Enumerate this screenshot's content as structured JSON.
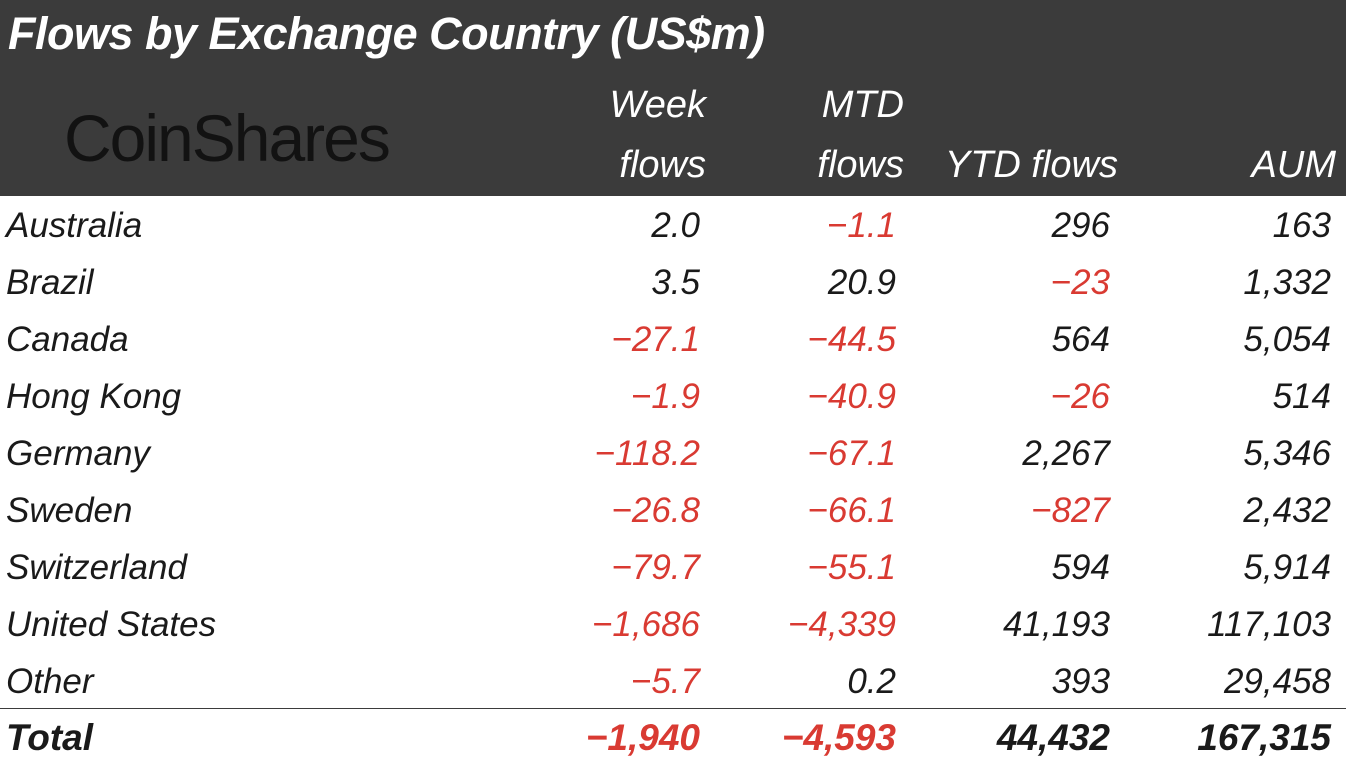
{
  "chart_data": {
    "type": "table",
    "title": "Flows by Exchange Country (US$m)",
    "brand": "CoinShares",
    "columns": [
      {
        "line1": "Week",
        "line2": "flows"
      },
      {
        "line1": "MTD",
        "line2": "flows"
      },
      {
        "line1": "",
        "line2": "YTD flows"
      },
      {
        "line1": "",
        "line2": "AUM"
      }
    ],
    "rows": [
      {
        "country": "Australia",
        "week": "2.0",
        "mtd": "-1.1",
        "ytd": "296",
        "aum": "163"
      },
      {
        "country": "Brazil",
        "week": "3.5",
        "mtd": "20.9",
        "ytd": "-23",
        "aum": "1,332"
      },
      {
        "country": "Canada",
        "week": "-27.1",
        "mtd": "-44.5",
        "ytd": "564",
        "aum": "5,054"
      },
      {
        "country": "Hong Kong",
        "week": "-1.9",
        "mtd": "-40.9",
        "ytd": "-26",
        "aum": "514"
      },
      {
        "country": "Germany",
        "week": "-118.2",
        "mtd": "-67.1",
        "ytd": "2,267",
        "aum": "5,346"
      },
      {
        "country": "Sweden",
        "week": "-26.8",
        "mtd": "-66.1",
        "ytd": "-827",
        "aum": "2,432"
      },
      {
        "country": "Switzerland",
        "week": "-79.7",
        "mtd": "-55.1",
        "ytd": "594",
        "aum": "5,914"
      },
      {
        "country": "United States",
        "week": "-1,686",
        "mtd": "-4,339",
        "ytd": "41,193",
        "aum": "117,103"
      },
      {
        "country": "Other",
        "week": "-5.7",
        "mtd": "0.2",
        "ytd": "393",
        "aum": "29,458"
      }
    ],
    "total": {
      "label": "Total",
      "week": "-1,940",
      "mtd": "-4,593",
      "ytd": "44,432",
      "aum": "167,315"
    },
    "colors": {
      "header_bg": "#3b3b3b",
      "negative": "#d93a32",
      "positive": "#1a1a1a"
    }
  }
}
